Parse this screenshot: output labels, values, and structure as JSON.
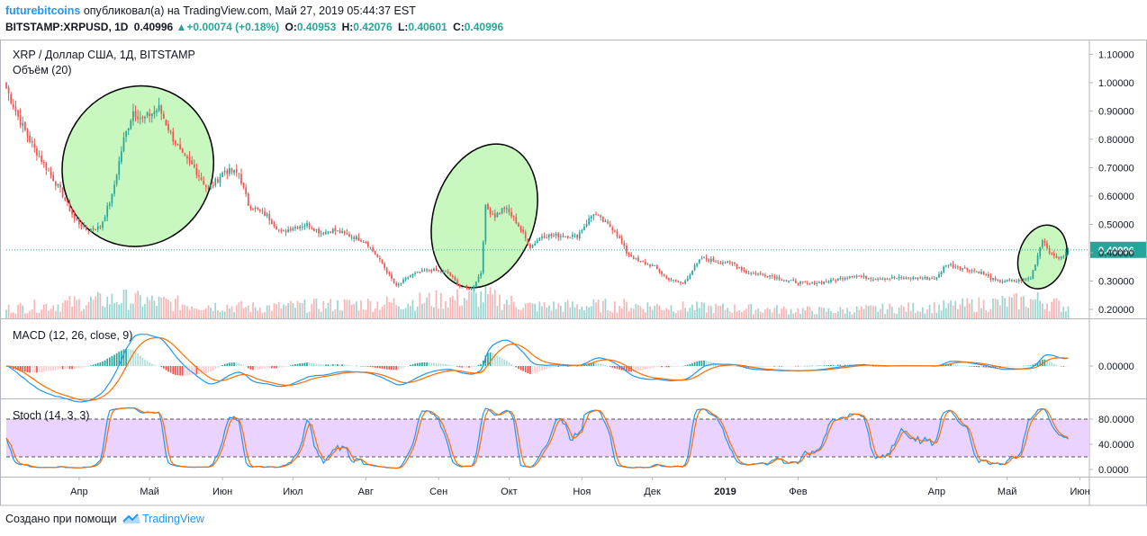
{
  "header": {
    "author": "futurebitcoins",
    "published_text": "опубликовал(а) на TradingView.com, Май 27, 2019 05:44:37 EST",
    "symbol": "BITSTAMP:XRPUSD, 1D",
    "last": "0.40996",
    "change": "+0.00074 (+0.18%)",
    "o_label": "O:",
    "o": "0.40953",
    "h_label": "H:",
    "h": "0.42076",
    "l_label": "L:",
    "l": "0.40601",
    "c_label": "C:",
    "c": "0.40996"
  },
  "footer": {
    "text": "Создано при помощи",
    "brand": "TradingView"
  },
  "colors": {
    "up": "#26a69a",
    "down": "#ef5350",
    "vol_up": "#7ecbc4",
    "vol_down": "#f5a3a3",
    "macd_line": "#2196f3",
    "signal_line": "#ff6d00",
    "stoch_k": "#2196f3",
    "stoch_d": "#ff6d00",
    "stoch_band": "#e6ccff",
    "highlight": "#c8f7c0",
    "price_line": "#26a69a"
  },
  "chart_data": {
    "type": "candlestick",
    "title": "XRP / Доллар США, 1Д, BITSTAMP",
    "volume_label": "Объём (20)",
    "x_range": [
      "2018-03-01",
      "2019-06-05"
    ],
    "price_axis": {
      "range": [
        0.2,
        1.12
      ],
      "ticks": [
        "1.10000",
        "1.00000",
        "0.90000",
        "0.80000",
        "0.70000",
        "0.60000",
        "0.50000",
        "0.40000",
        "0.30000",
        "0.20000"
      ]
    },
    "last_price_label": "0.40996",
    "last_price": 0.40996,
    "time_ticks": [
      {
        "label": "Апр",
        "date": "2018-04-01"
      },
      {
        "label": "Май",
        "date": "2018-05-01"
      },
      {
        "label": "Июн",
        "date": "2018-06-01"
      },
      {
        "label": "Июл",
        "date": "2018-07-01"
      },
      {
        "label": "Авг",
        "date": "2018-08-01"
      },
      {
        "label": "Сен",
        "date": "2018-09-01"
      },
      {
        "label": "Окт",
        "date": "2018-10-01"
      },
      {
        "label": "Ноя",
        "date": "2018-11-01"
      },
      {
        "label": "Дек",
        "date": "2018-12-01"
      },
      {
        "label": "2019",
        "date": "2019-01-01"
      },
      {
        "label": "Фев",
        "date": "2019-02-01"
      },
      {
        "label": "Апр",
        "date": "2019-04-01"
      },
      {
        "label": "Май",
        "date": "2019-05-01"
      },
      {
        "label": "Июн",
        "date": "2019-06-01"
      }
    ],
    "close_anchors": [
      [
        "2018-03-01",
        0.98
      ],
      [
        "2018-03-06",
        0.88
      ],
      [
        "2018-03-12",
        0.78
      ],
      [
        "2018-03-18",
        0.7
      ],
      [
        "2018-03-24",
        0.62
      ],
      [
        "2018-03-30",
        0.52
      ],
      [
        "2018-04-04",
        0.48
      ],
      [
        "2018-04-10",
        0.49
      ],
      [
        "2018-04-15",
        0.6
      ],
      [
        "2018-04-20",
        0.8
      ],
      [
        "2018-04-24",
        0.9
      ],
      [
        "2018-04-28",
        0.87
      ],
      [
        "2018-05-05",
        0.91
      ],
      [
        "2018-05-10",
        0.82
      ],
      [
        "2018-05-15",
        0.74
      ],
      [
        "2018-05-20",
        0.7
      ],
      [
        "2018-05-26",
        0.62
      ],
      [
        "2018-06-02",
        0.69
      ],
      [
        "2018-06-08",
        0.68
      ],
      [
        "2018-06-12",
        0.57
      ],
      [
        "2018-06-20",
        0.53
      ],
      [
        "2018-06-26",
        0.47
      ],
      [
        "2018-07-01",
        0.49
      ],
      [
        "2018-07-07",
        0.5
      ],
      [
        "2018-07-13",
        0.47
      ],
      [
        "2018-07-18",
        0.48
      ],
      [
        "2018-07-25",
        0.46
      ],
      [
        "2018-08-01",
        0.44
      ],
      [
        "2018-08-08",
        0.36
      ],
      [
        "2018-08-14",
        0.28
      ],
      [
        "2018-08-20",
        0.32
      ],
      [
        "2018-08-28",
        0.34
      ],
      [
        "2018-09-05",
        0.33
      ],
      [
        "2018-09-10",
        0.28
      ],
      [
        "2018-09-15",
        0.27
      ],
      [
        "2018-09-19",
        0.33
      ],
      [
        "2018-09-21",
        0.56
      ],
      [
        "2018-09-25",
        0.53
      ],
      [
        "2018-09-29",
        0.56
      ],
      [
        "2018-10-04",
        0.51
      ],
      [
        "2018-10-10",
        0.42
      ],
      [
        "2018-10-15",
        0.46
      ],
      [
        "2018-10-22",
        0.46
      ],
      [
        "2018-10-30",
        0.46
      ],
      [
        "2018-11-06",
        0.54
      ],
      [
        "2018-11-10",
        0.51
      ],
      [
        "2018-11-15",
        0.48
      ],
      [
        "2018-11-20",
        0.4
      ],
      [
        "2018-11-25",
        0.37
      ],
      [
        "2018-12-02",
        0.35
      ],
      [
        "2018-12-07",
        0.31
      ],
      [
        "2018-12-14",
        0.29
      ],
      [
        "2018-12-19",
        0.35
      ],
      [
        "2018-12-22",
        0.38
      ],
      [
        "2018-12-28",
        0.37
      ],
      [
        "2019-01-05",
        0.36
      ],
      [
        "2019-01-10",
        0.33
      ],
      [
        "2019-01-20",
        0.32
      ],
      [
        "2019-01-28",
        0.3
      ],
      [
        "2019-02-05",
        0.29
      ],
      [
        "2019-02-15",
        0.3
      ],
      [
        "2019-02-24",
        0.32
      ],
      [
        "2019-03-05",
        0.31
      ],
      [
        "2019-03-15",
        0.31
      ],
      [
        "2019-03-25",
        0.31
      ],
      [
        "2019-04-01",
        0.31
      ],
      [
        "2019-04-05",
        0.36
      ],
      [
        "2019-04-10",
        0.35
      ],
      [
        "2019-04-20",
        0.33
      ],
      [
        "2019-04-26",
        0.3
      ],
      [
        "2019-05-05",
        0.3
      ],
      [
        "2019-05-11",
        0.31
      ],
      [
        "2019-05-14",
        0.39
      ],
      [
        "2019-05-16",
        0.45
      ],
      [
        "2019-05-20",
        0.39
      ],
      [
        "2019-05-24",
        0.38
      ],
      [
        "2019-05-27",
        0.40996
      ]
    ],
    "volume_anchors": [
      [
        "2018-03-01",
        0.45
      ],
      [
        "2018-04-20",
        0.9
      ],
      [
        "2018-05-10",
        0.7
      ],
      [
        "2018-06-15",
        0.5
      ],
      [
        "2018-08-10",
        0.7
      ],
      [
        "2018-09-21",
        1.0
      ],
      [
        "2018-10-10",
        0.55
      ],
      [
        "2018-11-20",
        0.6
      ],
      [
        "2018-12-20",
        0.5
      ],
      [
        "2019-02-15",
        0.35
      ],
      [
        "2019-04-05",
        0.55
      ],
      [
        "2019-05-15",
        0.85
      ],
      [
        "2019-05-27",
        0.5
      ]
    ],
    "indicators": [
      {
        "name": "MACD",
        "label": "MACD (12, 26, close, 9)",
        "params": [
          12,
          26,
          9
        ],
        "axis_tick_label": "0.00000",
        "components": [
          "histogram",
          "macd",
          "signal"
        ]
      },
      {
        "name": "Stoch",
        "label": "Stoch (14, 3, 3)",
        "params": [
          14,
          3,
          3
        ],
        "axis_ticks": [
          "80.0000",
          "40.0000",
          "0.0000"
        ],
        "range": [
          0,
          100
        ],
        "bands": [
          20,
          80
        ]
      }
    ],
    "highlight_ellipses": [
      {
        "from": "2018-03-25",
        "to": "2018-05-28",
        "low": 0.42,
        "high": 0.99
      },
      {
        "from": "2018-08-30",
        "to": "2018-10-12",
        "low": 0.27,
        "high": 0.79
      },
      {
        "from": "2019-05-06",
        "to": "2019-05-26",
        "low": 0.27,
        "high": 0.5
      }
    ],
    "grid": false,
    "legend": "top-left"
  }
}
